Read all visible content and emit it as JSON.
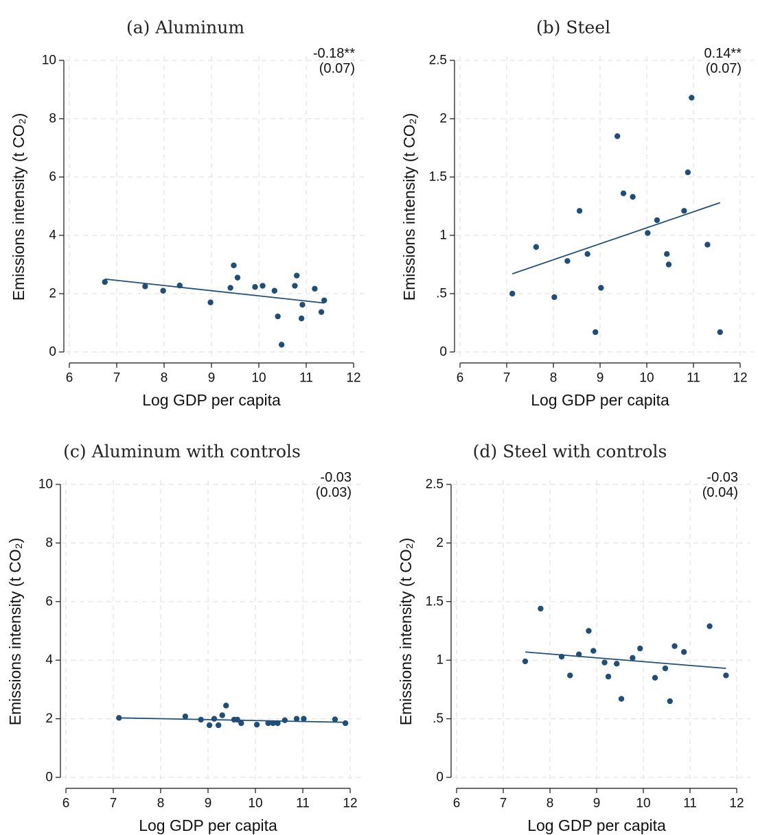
{
  "chart_data": [
    {
      "type": "scatter",
      "title": "(a) Aluminum",
      "xlabel": "Log GDP per capita",
      "ylabel": "Emissions intensity (t CO₂)",
      "xlim": [
        6,
        12
      ],
      "ylim": [
        0,
        10
      ],
      "xticks": [
        6,
        7,
        8,
        9,
        10,
        11,
        12
      ],
      "yticks": [
        0,
        2,
        4,
        6,
        8,
        10
      ],
      "ytick_labels": [
        "0",
        "2",
        "4",
        "6",
        "8",
        "10"
      ],
      "grid": true,
      "coef": "-0.18**",
      "se": "(0.07)",
      "points": [
        [
          6.75,
          2.4
        ],
        [
          7.6,
          2.25
        ],
        [
          7.98,
          2.1
        ],
        [
          8.33,
          2.28
        ],
        [
          8.98,
          1.7
        ],
        [
          9.4,
          2.2
        ],
        [
          9.47,
          2.97
        ],
        [
          9.55,
          2.55
        ],
        [
          9.92,
          2.23
        ],
        [
          10.08,
          2.27
        ],
        [
          10.33,
          2.1
        ],
        [
          10.4,
          1.22
        ],
        [
          10.48,
          0.25
        ],
        [
          10.76,
          2.27
        ],
        [
          10.8,
          2.62
        ],
        [
          10.9,
          1.15
        ],
        [
          10.92,
          1.62
        ],
        [
          11.18,
          2.17
        ],
        [
          11.32,
          1.37
        ],
        [
          11.38,
          1.77
        ]
      ],
      "fit": [
        [
          6.75,
          2.5
        ],
        [
          11.38,
          1.68
        ]
      ]
    },
    {
      "type": "scatter",
      "title": "(b) Steel",
      "xlabel": "Log GDP per capita",
      "ylabel": "Emissions intensity (t CO₂)",
      "xlim": [
        6,
        12
      ],
      "ylim": [
        0,
        2.5
      ],
      "xticks": [
        6,
        7,
        8,
        9,
        10,
        11,
        12
      ],
      "yticks": [
        0,
        0.5,
        1,
        1.5,
        2,
        2.5
      ],
      "ytick_labels": [
        "0",
        ".5",
        "1",
        "1.5",
        "2",
        "2.5"
      ],
      "grid": true,
      "coef": "0.14**",
      "se": "(0.07)",
      "points": [
        [
          7.12,
          0.5
        ],
        [
          7.63,
          0.9
        ],
        [
          8.02,
          0.47
        ],
        [
          8.3,
          0.78
        ],
        [
          8.56,
          1.21
        ],
        [
          8.73,
          0.84
        ],
        [
          8.9,
          0.17
        ],
        [
          9.02,
          0.55
        ],
        [
          9.37,
          1.85
        ],
        [
          9.5,
          1.36
        ],
        [
          9.7,
          1.33
        ],
        [
          10.02,
          1.02
        ],
        [
          10.22,
          1.13
        ],
        [
          10.43,
          0.84
        ],
        [
          10.47,
          0.75
        ],
        [
          10.8,
          1.21
        ],
        [
          10.88,
          1.54
        ],
        [
          10.96,
          2.18
        ],
        [
          11.3,
          0.92
        ],
        [
          11.57,
          0.17
        ]
      ],
      "fit": [
        [
          7.12,
          0.67
        ],
        [
          11.57,
          1.28
        ]
      ]
    },
    {
      "type": "scatter",
      "title": "(c) Aluminum with controls",
      "xlabel": "Log GDP per capita",
      "ylabel": "Emissions intensity (t CO₂)",
      "xlim": [
        6,
        12
      ],
      "ylim": [
        0,
        10
      ],
      "xticks": [
        6,
        7,
        8,
        9,
        10,
        11,
        12
      ],
      "yticks": [
        0,
        2,
        4,
        6,
        8,
        10
      ],
      "ytick_labels": [
        "0",
        "2",
        "4",
        "6",
        "8",
        "10"
      ],
      "grid": true,
      "coef": "-0.03",
      "se": "(0.03)",
      "points": [
        [
          7.12,
          2.03
        ],
        [
          8.52,
          2.08
        ],
        [
          8.85,
          1.97
        ],
        [
          9.03,
          1.78
        ],
        [
          9.13,
          2.0
        ],
        [
          9.22,
          1.78
        ],
        [
          9.3,
          2.12
        ],
        [
          9.38,
          2.45
        ],
        [
          9.55,
          1.97
        ],
        [
          9.62,
          1.97
        ],
        [
          9.7,
          1.85
        ],
        [
          10.03,
          1.8
        ],
        [
          10.27,
          1.85
        ],
        [
          10.37,
          1.85
        ],
        [
          10.47,
          1.85
        ],
        [
          10.62,
          1.95
        ],
        [
          10.87,
          2.0
        ],
        [
          11.02,
          2.0
        ],
        [
          11.68,
          1.98
        ],
        [
          11.9,
          1.85
        ]
      ],
      "fit": [
        [
          7.12,
          2.03
        ],
        [
          11.9,
          1.88
        ]
      ]
    },
    {
      "type": "scatter",
      "title": "(d) Steel with controls",
      "xlabel": "Log GDP per capita",
      "ylabel": "Emissions intensity (t CO₂)",
      "xlim": [
        6,
        12
      ],
      "ylim": [
        0,
        2.5
      ],
      "xticks": [
        6,
        7,
        8,
        9,
        10,
        11,
        12
      ],
      "yticks": [
        0,
        0.5,
        1,
        1.5,
        2,
        2.5
      ],
      "ytick_labels": [
        "0",
        ".5",
        "1",
        "1.5",
        "2",
        "2.5"
      ],
      "grid": true,
      "coef": "-0.03",
      "se": "(0.04)",
      "points": [
        [
          7.47,
          0.99
        ],
        [
          7.8,
          1.44
        ],
        [
          8.25,
          1.03
        ],
        [
          8.43,
          0.87
        ],
        [
          8.62,
          1.05
        ],
        [
          8.83,
          1.25
        ],
        [
          8.93,
          1.08
        ],
        [
          9.17,
          0.98
        ],
        [
          9.25,
          0.86
        ],
        [
          9.43,
          0.97
        ],
        [
          9.53,
          0.67
        ],
        [
          9.77,
          1.02
        ],
        [
          9.93,
          1.1
        ],
        [
          10.25,
          0.85
        ],
        [
          10.47,
          0.93
        ],
        [
          10.57,
          0.65
        ],
        [
          10.67,
          1.12
        ],
        [
          10.87,
          1.07
        ],
        [
          11.42,
          1.29
        ],
        [
          11.77,
          0.87
        ]
      ],
      "fit": [
        [
          7.47,
          1.07
        ],
        [
          11.77,
          0.93
        ]
      ]
    }
  ]
}
